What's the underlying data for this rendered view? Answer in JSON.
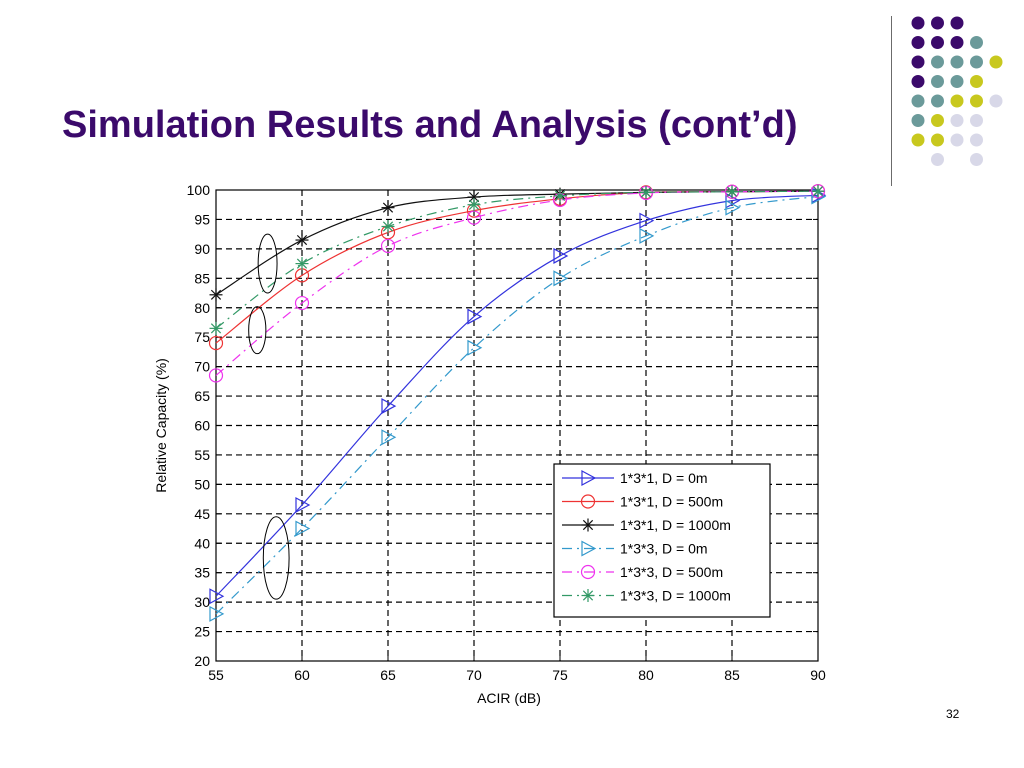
{
  "slide": {
    "title": "Simulation Results and Analysis (cont’d)",
    "page_number": "32",
    "title_color": "#3b0a6b"
  },
  "decor": {
    "palette": [
      "#3b0a6b",
      "#6b9a9a",
      "#c8c81e",
      "#d8d8e8"
    ]
  },
  "chart_data": {
    "type": "line",
    "xlabel": "ACIR (dB)",
    "ylabel": "Relative Capacity (%)",
    "xlim": [
      55,
      90
    ],
    "ylim": [
      20,
      100
    ],
    "xticks": [
      55,
      60,
      65,
      70,
      75,
      80,
      85,
      90
    ],
    "yticks": [
      20,
      25,
      30,
      35,
      40,
      45,
      50,
      55,
      60,
      65,
      70,
      75,
      80,
      85,
      90,
      95,
      100
    ],
    "grid": true,
    "legend_position": "lower-right",
    "x": [
      55,
      60,
      65,
      70,
      75,
      80,
      85,
      90
    ],
    "series": [
      {
        "name": "1*3*1, D = 0m",
        "values": [
          31.0,
          46.5,
          63.3,
          78.5,
          88.8,
          94.8,
          98.2,
          99.1
        ],
        "color": "#3333dd",
        "marker": "triangle-right",
        "dash": "solid"
      },
      {
        "name": "1*3*1, D = 500m",
        "values": [
          74.0,
          85.5,
          92.8,
          96.5,
          98.5,
          99.6,
          99.7,
          99.8
        ],
        "color": "#ee3333",
        "marker": "circle",
        "dash": "solid"
      },
      {
        "name": "1*3*1, D = 1000m",
        "values": [
          82.2,
          91.5,
          97.0,
          98.8,
          99.3,
          99.6,
          99.7,
          99.8
        ],
        "color": "#111111",
        "marker": "star",
        "dash": "solid"
      },
      {
        "name": "1*3*3, D = 0m",
        "values": [
          28.0,
          42.5,
          58.0,
          73.2,
          85.0,
          92.2,
          97.0,
          98.9
        ],
        "color": "#3399cc",
        "marker": "triangle-right",
        "dash": "dashdot"
      },
      {
        "name": "1*3*3, D = 500m",
        "values": [
          68.5,
          80.8,
          90.5,
          95.3,
          98.3,
          99.5,
          99.7,
          99.8
        ],
        "color": "#ee33ee",
        "marker": "circle",
        "dash": "dashdot"
      },
      {
        "name": "1*3*3, D = 1000m",
        "values": [
          76.5,
          87.5,
          93.8,
          97.5,
          99.0,
          99.6,
          99.7,
          99.8
        ],
        "color": "#339966",
        "marker": "star",
        "dash": "dashdot"
      }
    ],
    "annotations": [
      {
        "kind": "ellipse",
        "cx": 58.0,
        "cy": 87.5,
        "rx": 0.55,
        "ry": 5.0
      },
      {
        "kind": "ellipse",
        "cx": 57.4,
        "cy": 76.2,
        "rx": 0.5,
        "ry": 4.0
      },
      {
        "kind": "ellipse",
        "cx": 58.5,
        "cy": 37.5,
        "rx": 0.75,
        "ry": 7.0
      }
    ]
  }
}
